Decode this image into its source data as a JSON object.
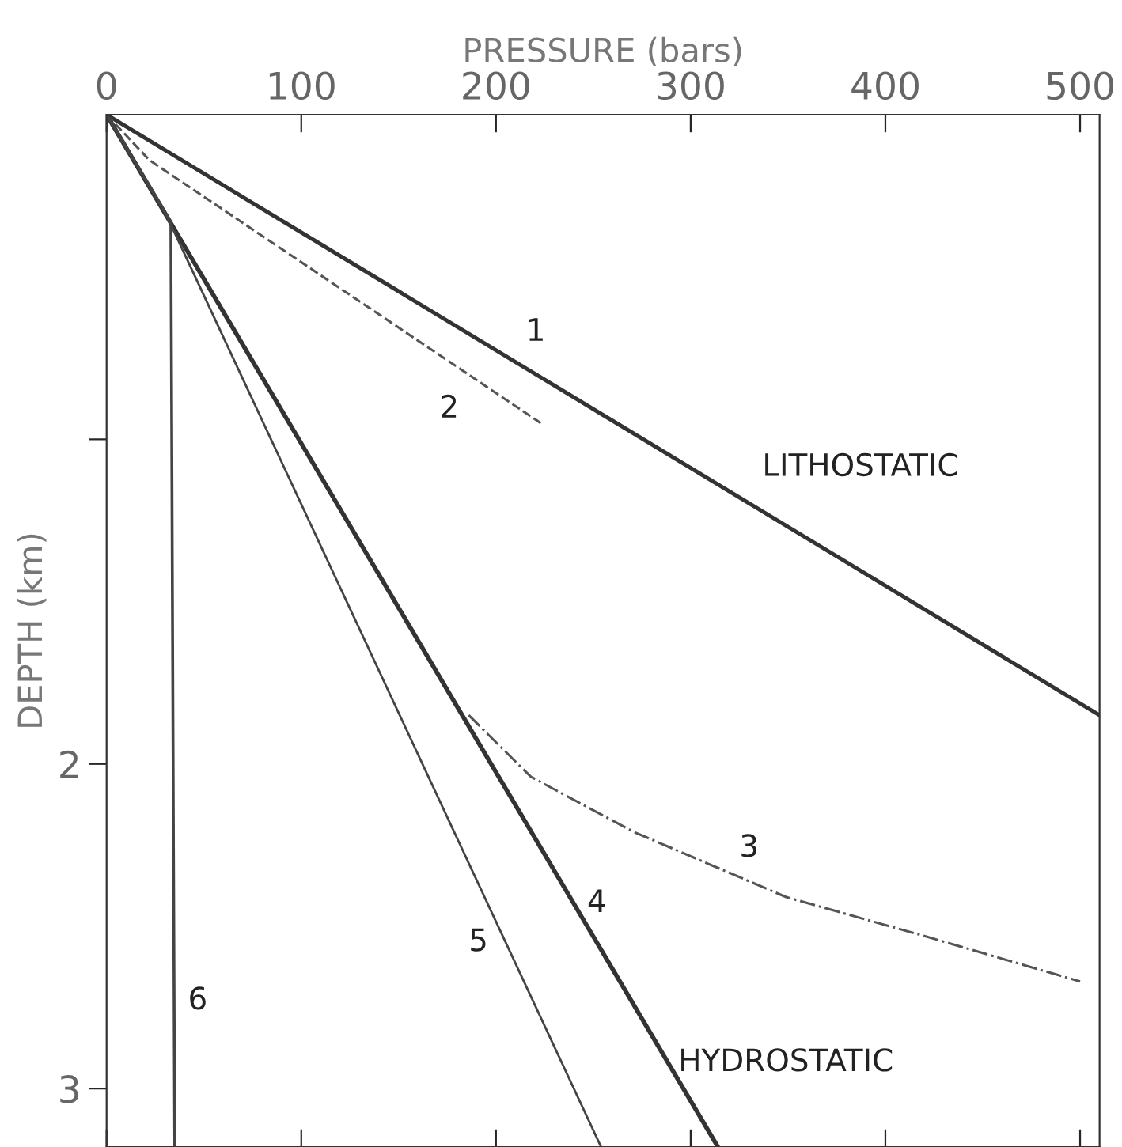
{
  "chart_data": {
    "type": "line",
    "xlabel": "PRESSURE (bars)",
    "ylabel": "DEPTH (km)",
    "xlim": [
      0,
      510
    ],
    "ylim": [
      3.18,
      0
    ],
    "xticks": [
      0,
      100,
      200,
      300,
      400,
      500
    ],
    "yticks": [
      {
        "value": 1,
        "label": null
      },
      2,
      3
    ],
    "grid": false,
    "marker": "none",
    "series": [
      {
        "color": "#333333",
        "line_style": "solid",
        "x": [
          0,
          510
        ],
        "values": [
          0,
          1.85
        ]
      },
      {
        "color": "#555555",
        "line_style": "dashed",
        "x": [
          0,
          22,
          223
        ],
        "values": [
          0,
          0.14,
          0.95
        ]
      },
      {
        "color": "#555555",
        "line_style": "dashdot",
        "x": [
          186,
          218,
          271,
          349,
          420,
          500
        ],
        "values": [
          1.85,
          2.04,
          2.21,
          2.41,
          2.53,
          2.67
        ]
      },
      {
        "color": "#333333",
        "line_style": "solid",
        "x": [
          0,
          314
        ],
        "values": [
          0,
          3.18
        ]
      },
      {
        "color": "#444444",
        "line_style": "solid",
        "x": [
          0,
          30,
          254
        ],
        "values": [
          0,
          0.3,
          3.18
        ]
      },
      {
        "color": "#444444",
        "line_style": "solid",
        "x": [
          0,
          33,
          35
        ],
        "values": [
          0,
          0.33,
          3.18
        ]
      }
    ],
    "annotations": [
      {
        "text": "1",
        "x": 212,
        "y": 0.77
      },
      {
        "text": "2",
        "x": 190,
        "y": 0.82
      },
      {
        "text": "LITHOSTATIC",
        "x": 330,
        "y": 1.2
      },
      {
        "text": "3",
        "x": 330,
        "y": 2.36
      },
      {
        "text": "4",
        "x": 240,
        "y": 2.43
      },
      {
        "text": "5",
        "x": 205,
        "y": 2.55
      },
      {
        "text": "6",
        "x": 35,
        "y": 2.73
      },
      {
        "text": "HYDROSTATIC",
        "x": 288,
        "y": 2.92
      }
    ]
  }
}
